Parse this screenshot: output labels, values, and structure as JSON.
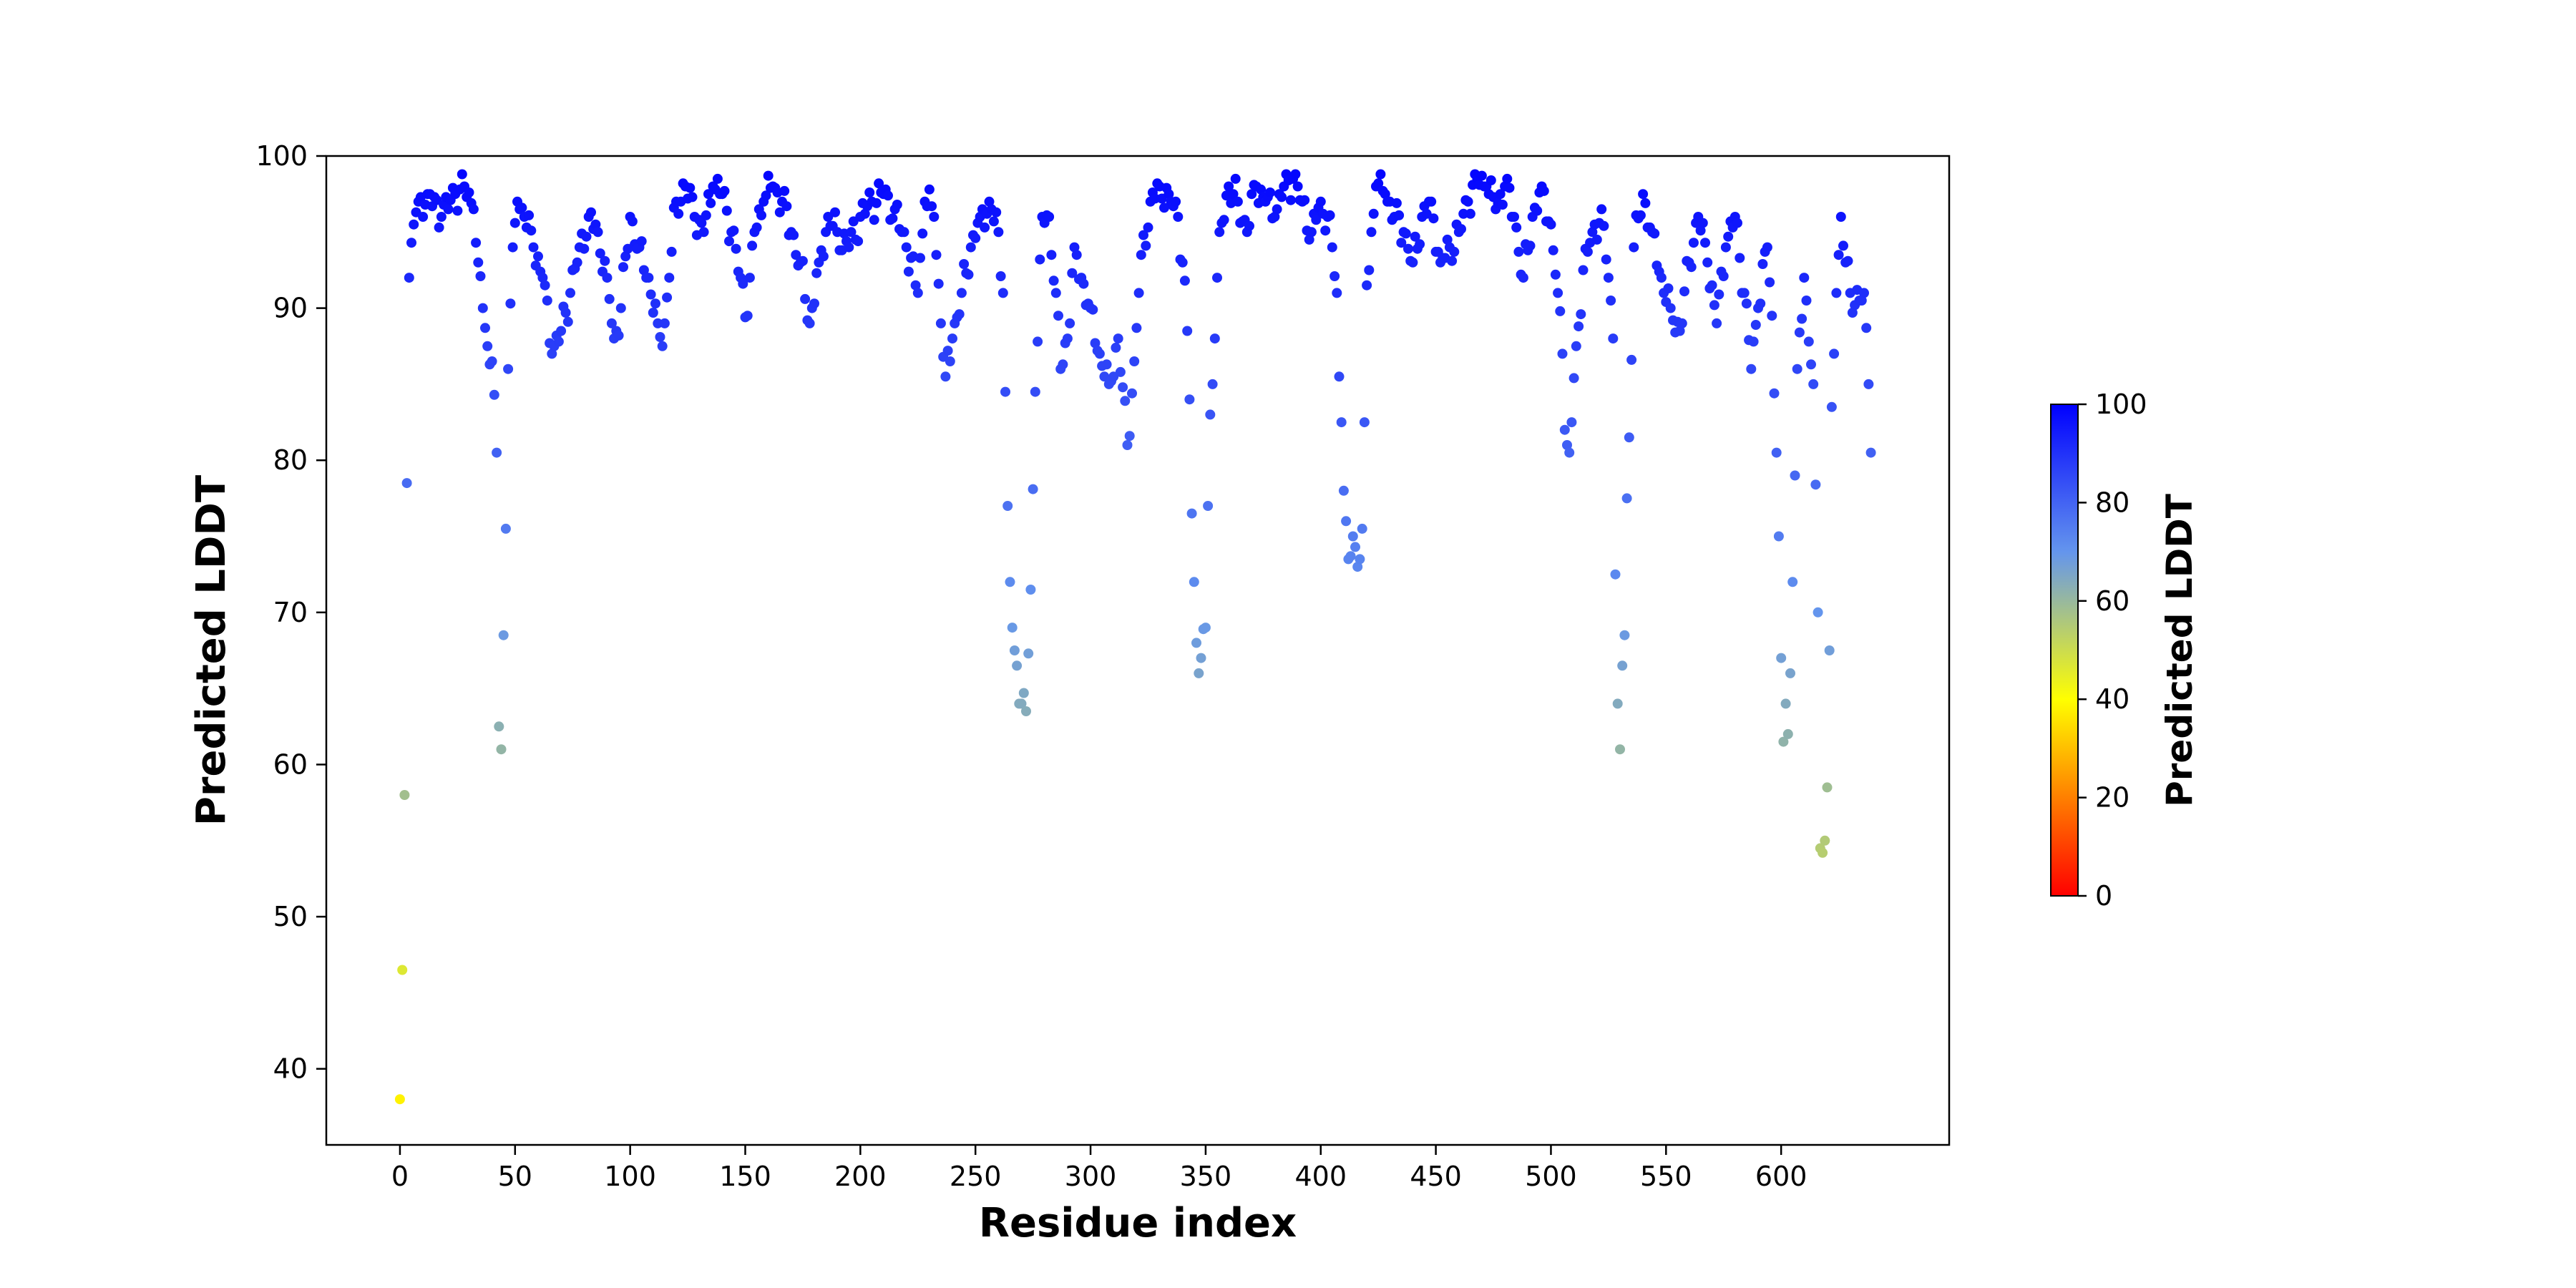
{
  "chart_data": {
    "type": "scatter",
    "xlabel": "Residue index",
    "ylabel": "Predicted LDDT",
    "xlim": [
      -32,
      673
    ],
    "ylim": [
      35,
      100
    ],
    "xticks": [
      0,
      50,
      100,
      150,
      200,
      250,
      300,
      350,
      400,
      450,
      500,
      550,
      600
    ],
    "yticks": [
      40,
      50,
      60,
      70,
      80,
      90,
      100
    ],
    "grid": false,
    "colorbar": {
      "label": "Predicted LDDT",
      "range": [
        0,
        100
      ],
      "ticks": [
        0,
        20,
        40,
        60,
        80,
        100
      ],
      "colors": [
        "#ff0000",
        "#ffff00",
        "#6495ed",
        "#0000ff"
      ]
    },
    "anchors": [
      [
        0,
        38
      ],
      [
        1,
        46.5
      ],
      [
        2,
        58
      ],
      [
        3,
        78.5
      ],
      [
        4,
        92
      ],
      [
        6,
        95.5
      ],
      [
        8,
        97
      ],
      [
        12,
        97.5
      ],
      [
        18,
        96
      ],
      [
        24,
        97.5
      ],
      [
        28,
        98
      ],
      [
        32,
        96.5
      ],
      [
        34,
        93
      ],
      [
        36,
        90
      ],
      [
        38,
        87.5
      ],
      [
        40,
        86.5
      ],
      [
        42,
        80.5
      ],
      [
        43,
        62.5
      ],
      [
        44,
        61
      ],
      [
        45,
        68.5
      ],
      [
        46,
        75.5
      ],
      [
        47,
        86
      ],
      [
        49,
        94
      ],
      [
        51,
        97
      ],
      [
        54,
        96
      ],
      [
        58,
        94
      ],
      [
        62,
        92
      ],
      [
        66,
        87
      ],
      [
        70,
        88.5
      ],
      [
        74,
        91
      ],
      [
        78,
        94
      ],
      [
        82,
        96
      ],
      [
        86,
        95
      ],
      [
        90,
        92
      ],
      [
        93,
        88
      ],
      [
        96,
        90
      ],
      [
        100,
        96
      ],
      [
        104,
        94
      ],
      [
        108,
        92
      ],
      [
        112,
        89
      ],
      [
        114,
        87.5
      ],
      [
        117,
        92
      ],
      [
        120,
        97
      ],
      [
        124,
        98
      ],
      [
        128,
        96
      ],
      [
        132,
        95
      ],
      [
        136,
        98
      ],
      [
        140,
        97.5
      ],
      [
        144,
        95
      ],
      [
        148,
        92
      ],
      [
        151,
        89.5
      ],
      [
        154,
        95
      ],
      [
        158,
        97
      ],
      [
        162,
        98
      ],
      [
        166,
        97
      ],
      [
        170,
        95
      ],
      [
        174,
        93
      ],
      [
        178,
        89
      ],
      [
        182,
        93
      ],
      [
        186,
        96
      ],
      [
        190,
        95
      ],
      [
        195,
        94
      ],
      [
        200,
        96
      ],
      [
        205,
        97
      ],
      [
        210,
        97.5
      ],
      [
        215,
        96.5
      ],
      [
        220,
        94
      ],
      [
        225,
        91
      ],
      [
        228,
        97
      ],
      [
        232,
        96
      ],
      [
        235,
        89
      ],
      [
        237,
        85.5
      ],
      [
        240,
        88
      ],
      [
        244,
        91
      ],
      [
        248,
        94
      ],
      [
        252,
        96
      ],
      [
        256,
        97
      ],
      [
        260,
        95
      ],
      [
        262,
        91
      ],
      [
        263,
        84.5
      ],
      [
        264,
        77
      ],
      [
        265,
        72
      ],
      [
        266,
        69
      ],
      [
        267,
        67.5
      ],
      [
        268,
        66.5
      ],
      [
        270,
        64
      ],
      [
        272,
        63.5
      ],
      [
        274,
        71.5
      ],
      [
        276,
        84.5
      ],
      [
        279,
        96
      ],
      [
        282,
        96
      ],
      [
        285,
        91
      ],
      [
        287,
        86
      ],
      [
        290,
        88
      ],
      [
        293,
        94
      ],
      [
        296,
        92
      ],
      [
        300,
        90
      ],
      [
        304,
        87
      ],
      [
        308,
        85
      ],
      [
        312,
        88
      ],
      [
        316,
        81
      ],
      [
        319,
        86.5
      ],
      [
        322,
        93.5
      ],
      [
        326,
        97
      ],
      [
        330,
        98
      ],
      [
        334,
        97.5
      ],
      [
        338,
        96
      ],
      [
        340,
        93
      ],
      [
        342,
        88.5
      ],
      [
        343,
        84
      ],
      [
        344,
        76.5
      ],
      [
        345,
        72
      ],
      [
        346,
        68
      ],
      [
        347,
        66
      ],
      [
        348,
        67
      ],
      [
        350,
        69
      ],
      [
        351,
        77
      ],
      [
        352,
        83
      ],
      [
        354,
        88
      ],
      [
        356,
        95
      ],
      [
        360,
        98
      ],
      [
        364,
        97
      ],
      [
        368,
        95
      ],
      [
        372,
        98
      ],
      [
        376,
        97
      ],
      [
        380,
        96
      ],
      [
        384,
        98
      ],
      [
        388,
        98.5
      ],
      [
        392,
        97
      ],
      [
        396,
        95
      ],
      [
        400,
        97
      ],
      [
        403,
        96
      ],
      [
        405,
        94
      ],
      [
        407,
        91
      ],
      [
        408,
        85.5
      ],
      [
        409,
        82.5
      ],
      [
        410,
        78
      ],
      [
        411,
        76
      ],
      [
        412,
        73.5
      ],
      [
        414,
        75
      ],
      [
        416,
        73
      ],
      [
        418,
        75.5
      ],
      [
        419,
        82.5
      ],
      [
        420,
        91.5
      ],
      [
        424,
        98
      ],
      [
        428,
        97.5
      ],
      [
        432,
        96
      ],
      [
        436,
        95
      ],
      [
        440,
        93
      ],
      [
        444,
        96
      ],
      [
        448,
        97
      ],
      [
        452,
        93
      ],
      [
        456,
        94
      ],
      [
        460,
        95
      ],
      [
        464,
        97
      ],
      [
        468,
        98.5
      ],
      [
        472,
        98
      ],
      [
        476,
        96.5
      ],
      [
        480,
        98
      ],
      [
        484,
        96
      ],
      [
        488,
        92
      ],
      [
        492,
        96
      ],
      [
        496,
        98
      ],
      [
        500,
        95.5
      ],
      [
        503,
        91
      ],
      [
        505,
        87
      ],
      [
        506,
        82
      ],
      [
        507,
        81
      ],
      [
        508,
        80.5
      ],
      [
        509,
        82.5
      ],
      [
        511,
        87.5
      ],
      [
        514,
        92.5
      ],
      [
        518,
        95
      ],
      [
        522,
        96.5
      ],
      [
        525,
        92
      ],
      [
        527,
        88
      ],
      [
        528,
        72.5
      ],
      [
        529,
        64
      ],
      [
        530,
        61
      ],
      [
        531,
        66.5
      ],
      [
        532,
        68.5
      ],
      [
        533,
        77.5
      ],
      [
        534,
        81.5
      ],
      [
        536,
        94
      ],
      [
        540,
        97.5
      ],
      [
        544,
        95
      ],
      [
        548,
        92
      ],
      [
        552,
        90
      ],
      [
        556,
        88.5
      ],
      [
        560,
        93
      ],
      [
        564,
        96
      ],
      [
        568,
        93
      ],
      [
        572,
        89
      ],
      [
        576,
        94
      ],
      [
        580,
        96
      ],
      [
        584,
        91
      ],
      [
        587,
        86
      ],
      [
        590,
        90
      ],
      [
        594,
        94
      ],
      [
        596,
        89.5
      ],
      [
        598,
        80.5
      ],
      [
        599,
        75
      ],
      [
        600,
        67
      ],
      [
        601,
        61.5
      ],
      [
        602,
        64
      ],
      [
        603,
        62
      ],
      [
        604,
        66
      ],
      [
        605,
        72
      ],
      [
        607,
        86
      ],
      [
        610,
        92
      ],
      [
        614,
        85
      ],
      [
        616,
        70
      ],
      [
        617,
        54.5
      ],
      [
        618,
        54.2
      ],
      [
        619,
        55
      ],
      [
        620,
        58.5
      ],
      [
        621,
        67.5
      ],
      [
        622,
        83.5
      ],
      [
        624,
        91
      ],
      [
        626,
        96
      ],
      [
        628,
        93
      ],
      [
        630,
        91
      ],
      [
        634,
        90.5
      ],
      [
        636,
        91
      ],
      [
        638,
        85
      ],
      [
        639,
        80.5
      ]
    ]
  }
}
